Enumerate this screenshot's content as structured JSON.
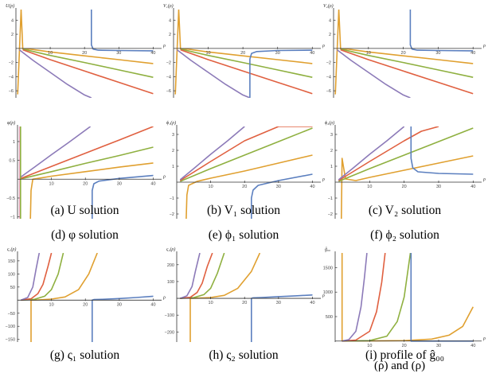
{
  "colors": {
    "blue": "#5b7fbf",
    "orange": "#e0a030",
    "green": "#8fb040",
    "red": "#e06040",
    "purple": "#8c7ab8",
    "axis": "#333333",
    "text": "#000000"
  },
  "footer_text": "(ρ) and (ρ)",
  "chart_data": [
    {
      "id": "a",
      "type": "line",
      "title": "",
      "ylabel": "U(ρ)",
      "xlabel": "ρ",
      "caption": "(a) U solution",
      "xlim": [
        0,
        42
      ],
      "ylim": [
        -7,
        5.5
      ],
      "xticks": [
        10,
        20,
        30,
        40
      ],
      "yticks": [
        4,
        2,
        -2,
        -4,
        -6
      ],
      "series": [
        {
          "color": "orange",
          "x": [
            0.5,
            1.5,
            2,
            4,
            10,
            20,
            30,
            40
          ],
          "y": [
            -6.5,
            5.5,
            -0.05,
            -0.1,
            -0.5,
            -1.05,
            -1.6,
            -2.15
          ]
        },
        {
          "color": "green",
          "x": [
            2,
            10,
            20,
            30,
            40
          ],
          "y": [
            -0.1,
            -1.0,
            -2.0,
            -3.05,
            -4.1
          ]
        },
        {
          "color": "red",
          "x": [
            2,
            10,
            20,
            30,
            40
          ],
          "y": [
            -0.2,
            -1.6,
            -3.2,
            -4.8,
            -6.4
          ]
        },
        {
          "color": "purple",
          "x": [
            1,
            5,
            10,
            15,
            20,
            22
          ],
          "y": [
            -0.2,
            -1.7,
            -3.4,
            -5.1,
            -6.6,
            -7
          ]
        },
        {
          "color": "blue",
          "x": [
            22.0,
            22.0,
            22.5,
            24,
            30,
            40
          ],
          "y": [
            5.5,
            0.5,
            -0.1,
            -0.25,
            -0.3,
            -0.35
          ]
        }
      ]
    },
    {
      "id": "b",
      "type": "line",
      "title": "",
      "ylabel": "V₁(ρ)",
      "xlabel": "ρ",
      "caption": "(b) V₁ solution",
      "xlim": [
        0,
        42
      ],
      "ylim": [
        -7,
        5.5
      ],
      "xticks": [
        10,
        20,
        30,
        40
      ],
      "yticks": [
        4,
        2,
        -2,
        -4,
        -6
      ],
      "series": [
        {
          "color": "orange",
          "x": [
            0.5,
            1.5,
            2,
            4,
            10,
            20,
            30,
            40
          ],
          "y": [
            -6.5,
            5.5,
            -0.05,
            -0.1,
            -0.5,
            -1.05,
            -1.6,
            -2.15
          ]
        },
        {
          "color": "green",
          "x": [
            2,
            10,
            20,
            30,
            40
          ],
          "y": [
            -0.1,
            -1.0,
            -2.0,
            -3.05,
            -4.1
          ]
        },
        {
          "color": "red",
          "x": [
            2,
            10,
            20,
            30,
            40
          ],
          "y": [
            -0.2,
            -1.6,
            -3.2,
            -4.8,
            -6.4
          ]
        },
        {
          "color": "purple",
          "x": [
            1,
            5,
            10,
            15,
            20,
            22
          ],
          "y": [
            -0.2,
            -1.7,
            -3.4,
            -5.1,
            -6.6,
            -7
          ]
        },
        {
          "color": "blue",
          "x": [
            22.0,
            22.0,
            22.5,
            24,
            30,
            40
          ],
          "y": [
            -7,
            -1.5,
            -0.7,
            -0.45,
            -0.3,
            -0.25
          ]
        }
      ]
    },
    {
      "id": "c",
      "type": "line",
      "title": "",
      "ylabel": "V₂(ρ)",
      "xlabel": "ρ",
      "caption": "(c) V₂ solution",
      "xlim": [
        0,
        42
      ],
      "ylim": [
        -7,
        5.5
      ],
      "xticks": [
        10,
        20,
        30,
        40
      ],
      "yticks": [
        4,
        2,
        -2,
        -4,
        -6
      ],
      "series": [
        {
          "color": "orange",
          "x": [
            0.5,
            1.5,
            2,
            4,
            10,
            20,
            30,
            40
          ],
          "y": [
            -6.5,
            5.5,
            -0.05,
            -0.1,
            -0.5,
            -1.05,
            -1.6,
            -2.15
          ]
        },
        {
          "color": "green",
          "x": [
            2,
            10,
            20,
            30,
            40
          ],
          "y": [
            -0.1,
            -1.0,
            -2.0,
            -3.05,
            -4.1
          ]
        },
        {
          "color": "red",
          "x": [
            2,
            10,
            20,
            30,
            40
          ],
          "y": [
            -0.2,
            -1.6,
            -3.2,
            -4.8,
            -6.4
          ]
        },
        {
          "color": "purple",
          "x": [
            1,
            5,
            10,
            15,
            20,
            22
          ],
          "y": [
            -0.2,
            -1.7,
            -3.4,
            -5.1,
            -6.6,
            -7
          ]
        },
        {
          "color": "blue",
          "x": [
            22.0,
            22.0,
            22.5,
            24,
            30,
            40
          ],
          "y": [
            5.5,
            0.5,
            -0.1,
            -0.25,
            -0.3,
            -0.35
          ]
        }
      ]
    },
    {
      "id": "d",
      "type": "line",
      "title": "",
      "ylabel": "φ(ρ)",
      "xlabel": "ρ",
      "caption": "(d) φ solution",
      "xlim": [
        0,
        42
      ],
      "ylim": [
        -1.05,
        1.4
      ],
      "xticks": [
        10,
        20,
        30,
        40
      ],
      "yticks": [
        1.0,
        0.5,
        -0.5,
        -1.0
      ],
      "series": [
        {
          "color": "orange",
          "x": [
            3.8,
            4.0,
            4.5,
            6,
            10,
            20,
            30,
            40
          ],
          "y": [
            -1.05,
            -0.3,
            0.0,
            0.02,
            0.08,
            0.2,
            0.32,
            0.43
          ]
        },
        {
          "color": "green",
          "x": [
            1,
            10,
            20,
            30,
            40
          ],
          "y": [
            0.01,
            0.2,
            0.42,
            0.63,
            0.85
          ]
        },
        {
          "color": "red",
          "x": [
            1,
            10,
            20,
            30,
            40
          ],
          "y": [
            0.02,
            0.34,
            0.69,
            1.04,
            1.4
          ]
        },
        {
          "color": "purple",
          "x": [
            1,
            5,
            10,
            15,
            21.5
          ],
          "y": [
            0.06,
            0.32,
            0.65,
            0.97,
            1.4
          ]
        },
        {
          "color": "blue",
          "x": [
            22.0,
            22.0,
            22.5,
            24,
            30,
            40
          ],
          "y": [
            -1.05,
            -0.3,
            -0.12,
            -0.05,
            0.02,
            0.1
          ]
        },
        {
          "color": "#f0a8c8",
          "x": [
            0.6,
            0.6
          ],
          "y": [
            -1.05,
            1.4
          ]
        },
        {
          "color": "green",
          "x": [
            0.9,
            0.9
          ],
          "y": [
            -1.05,
            1.4
          ]
        }
      ]
    },
    {
      "id": "e",
      "type": "line",
      "title": "",
      "ylabel": "ϕ₁(ρ)",
      "xlabel": "ρ",
      "caption": "(e) ϕ₁ solution",
      "xlim": [
        0,
        42
      ],
      "ylim": [
        -2.3,
        3.5
      ],
      "xticks": [
        10,
        20,
        30,
        40
      ],
      "yticks": [
        3,
        2,
        1,
        -1,
        -2
      ],
      "series": [
        {
          "color": "orange",
          "x": [
            2.8,
            3.0,
            3.5,
            6,
            10,
            20,
            30,
            40
          ],
          "y": [
            -2.3,
            -0.8,
            -0.2,
            0.05,
            0.25,
            0.7,
            1.2,
            1.7
          ]
        },
        {
          "color": "green",
          "x": [
            1,
            10,
            20,
            30,
            40
          ],
          "y": [
            0.05,
            0.85,
            1.7,
            2.55,
            3.4
          ]
        },
        {
          "color": "red",
          "x": [
            1,
            10,
            20,
            30,
            40
          ],
          "y": [
            0.1,
            1.3,
            2.6,
            3.5,
            3.5
          ]
        },
        {
          "color": "purple",
          "x": [
            1,
            5,
            10,
            15,
            20
          ],
          "y": [
            0.15,
            0.85,
            1.75,
            2.6,
            3.5
          ]
        },
        {
          "color": "blue",
          "x": [
            22.0,
            22.0,
            22.5,
            24,
            30,
            40
          ],
          "y": [
            -2.3,
            -1.0,
            -0.5,
            -0.2,
            0.1,
            0.5
          ]
        }
      ]
    },
    {
      "id": "f",
      "type": "line",
      "title": "",
      "ylabel": "ϕ₂(ρ)",
      "xlabel": "ρ",
      "caption": "(f) ϕ₂ solution",
      "xlim": [
        0,
        42
      ],
      "ylim": [
        -2.3,
        3.5
      ],
      "xticks": [
        10,
        20,
        30,
        40
      ],
      "yticks": [
        3,
        2,
        1,
        -1,
        -2
      ],
      "series": [
        {
          "color": "orange",
          "x": [
            1.8,
            2.0,
            3,
            6,
            10,
            20,
            30,
            40
          ],
          "y": [
            -2.3,
            1.5,
            0.2,
            0.1,
            0.3,
            0.75,
            1.2,
            1.65
          ]
        },
        {
          "color": "green",
          "x": [
            1,
            10,
            20,
            30,
            40
          ],
          "y": [
            0.05,
            0.85,
            1.7,
            2.55,
            3.4
          ]
        },
        {
          "color": "red",
          "x": [
            1,
            10,
            20,
            25,
            30
          ],
          "y": [
            0.1,
            1.3,
            2.6,
            3.2,
            3.5
          ]
        },
        {
          "color": "purple",
          "x": [
            1,
            5,
            10,
            15,
            20
          ],
          "y": [
            0.15,
            0.85,
            1.75,
            2.6,
            3.5
          ]
        },
        {
          "color": "blue",
          "x": [
            22.0,
            22.0,
            22.5,
            24,
            30,
            40
          ],
          "y": [
            3.5,
            1.5,
            0.9,
            0.65,
            0.55,
            0.5
          ]
        }
      ]
    },
    {
      "id": "g",
      "type": "line",
      "title": "",
      "ylabel": "ς₁(ρ)",
      "xlabel": "ρ",
      "caption": "(g) ς₁ solution",
      "xlim": [
        0,
        42
      ],
      "ylim": [
        -160,
        180
      ],
      "xticks": [
        10,
        20,
        30,
        40
      ],
      "yticks": [
        150,
        100,
        50,
        -50,
        -100,
        -150
      ],
      "series": [
        {
          "color": "orange",
          "x": [
            4.0,
            4.0,
            6,
            10,
            14,
            18,
            21,
            23.5
          ],
          "y": [
            -160,
            0,
            1,
            4,
            12,
            40,
            100,
            180
          ]
        },
        {
          "color": "green",
          "x": [
            1,
            5,
            8,
            10,
            12,
            13.5
          ],
          "y": [
            0,
            3,
            15,
            40,
            100,
            180
          ]
        },
        {
          "color": "red",
          "x": [
            1,
            4,
            6,
            7.5,
            9,
            10
          ],
          "y": [
            0,
            5,
            25,
            60,
            130,
            180
          ]
        },
        {
          "color": "purple",
          "x": [
            1,
            3,
            4.5,
            5.5,
            6.4
          ],
          "y": [
            0,
            10,
            50,
            120,
            180
          ]
        },
        {
          "color": "blue",
          "x": [
            22.0,
            22.0,
            22.5,
            25,
            30,
            35,
            40
          ],
          "y": [
            -160,
            0,
            2,
            3,
            6,
            10,
            15
          ]
        }
      ]
    },
    {
      "id": "h",
      "type": "line",
      "title": "",
      "ylabel": "ς₂(ρ)",
      "xlabel": "ρ",
      "caption": "(h) ς₂ solution",
      "xlim": [
        0,
        42
      ],
      "ylim": [
        -260,
        270
      ],
      "xticks": [
        10,
        20,
        30,
        40
      ],
      "yticks": [
        200,
        100,
        -100,
        -200
      ],
      "series": [
        {
          "color": "orange",
          "x": [
            4.0,
            4.0,
            6,
            10,
            14,
            18,
            22,
            24.5
          ],
          "y": [
            -260,
            0,
            1,
            5,
            18,
            60,
            160,
            270
          ]
        },
        {
          "color": "green",
          "x": [
            1,
            5,
            8,
            10,
            12,
            14
          ],
          "y": [
            0,
            4,
            22,
            60,
            150,
            270
          ]
        },
        {
          "color": "red",
          "x": [
            1,
            4,
            6,
            7.5,
            9,
            10.5
          ],
          "y": [
            0,
            6,
            35,
            90,
            190,
            270
          ]
        },
        {
          "color": "purple",
          "x": [
            1,
            3,
            4.5,
            5.5,
            6.8
          ],
          "y": [
            0,
            15,
            70,
            160,
            270
          ]
        },
        {
          "color": "blue",
          "x": [
            22.0,
            22.0,
            22.5,
            25,
            30,
            35,
            40
          ],
          "y": [
            -260,
            0,
            3,
            5,
            10,
            15,
            20
          ]
        }
      ]
    },
    {
      "id": "i",
      "type": "line",
      "title": "",
      "ylabel": "ĝ₀₀",
      "xlabel": "ρ",
      "caption": "(i) profile of ĝ₀₀",
      "xlim": [
        0,
        42
      ],
      "ylim": [
        -20,
        1800
      ],
      "xticks": [
        10,
        20,
        30,
        40
      ],
      "yticks": [
        1500,
        1000,
        500
      ],
      "series": [
        {
          "color": "orange",
          "x": [
            2.0,
            2.0,
            4,
            10,
            20,
            28,
            33,
            37,
            40
          ],
          "y": [
            1800,
            5,
            2,
            3,
            10,
            40,
            120,
            300,
            700
          ]
        },
        {
          "color": "green",
          "x": [
            2,
            10,
            15,
            18,
            20,
            21.8
          ],
          "y": [
            0,
            10,
            100,
            400,
            900,
            1800
          ]
        },
        {
          "color": "red",
          "x": [
            2,
            6,
            10,
            12,
            13.5,
            14.5
          ],
          "y": [
            0,
            20,
            200,
            600,
            1200,
            1800
          ]
        },
        {
          "color": "purple",
          "x": [
            2,
            4,
            6,
            7.5,
            8.5,
            9.2
          ],
          "y": [
            0,
            30,
            200,
            700,
            1300,
            1800
          ]
        },
        {
          "color": "blue",
          "x": [
            22.0,
            22.0,
            24,
            30,
            40
          ],
          "y": [
            1800,
            0,
            0,
            0,
            0
          ]
        }
      ]
    }
  ]
}
